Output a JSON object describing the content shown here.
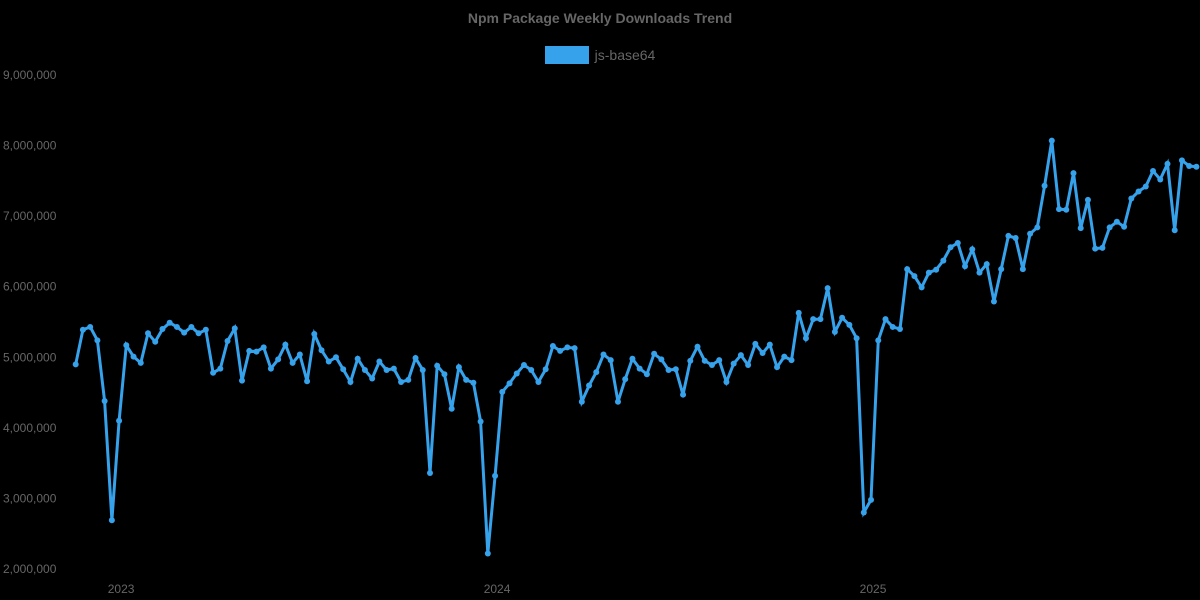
{
  "chart_data": {
    "type": "line",
    "title": "Npm Package Weekly Downloads Trend",
    "xlabel": "",
    "ylabel": "",
    "ylim": [
      2000000,
      9000000
    ],
    "yticks": [
      9000000,
      8000000,
      7000000,
      6000000,
      5000000,
      4000000,
      3000000,
      2000000
    ],
    "ytick_labels": [
      "9,000,000",
      "8,000,000",
      "7,000,000",
      "6,000,000",
      "5,000,000",
      "4,000,000",
      "3,000,000",
      "2,000,000"
    ],
    "xtick_labels": [
      {
        "label": "2023",
        "index": 6
      },
      {
        "label": "2024",
        "index": 58
      },
      {
        "label": "2025",
        "index": 110
      }
    ],
    "grid": false,
    "legend_position": "top",
    "x_description": "weekly points from late 2022 to late 2025",
    "series": [
      {
        "name": "js-base64",
        "color": "#36A2EB",
        "values": [
          4900000,
          5390000,
          5430000,
          5240000,
          4380000,
          2690000,
          4100000,
          5170000,
          5010000,
          4920000,
          5340000,
          5220000,
          5400000,
          5490000,
          5430000,
          5350000,
          5430000,
          5340000,
          5390000,
          4780000,
          4840000,
          5230000,
          5410000,
          4670000,
          5090000,
          5080000,
          5140000,
          4840000,
          4970000,
          5180000,
          4920000,
          5040000,
          4660000,
          5330000,
          5100000,
          4940000,
          5000000,
          4830000,
          4650000,
          4980000,
          4820000,
          4700000,
          4940000,
          4820000,
          4840000,
          4650000,
          4680000,
          4990000,
          4820000,
          3360000,
          4880000,
          4760000,
          4270000,
          4860000,
          4680000,
          4640000,
          4090000,
          2220000,
          3320000,
          4510000,
          4630000,
          4770000,
          4890000,
          4820000,
          4650000,
          4830000,
          5160000,
          5090000,
          5140000,
          5130000,
          4370000,
          4600000,
          4790000,
          5040000,
          4960000,
          4370000,
          4690000,
          4980000,
          4840000,
          4760000,
          5050000,
          4970000,
          4820000,
          4830000,
          4470000,
          4950000,
          5150000,
          4950000,
          4890000,
          4960000,
          4650000,
          4910000,
          5030000,
          4890000,
          5190000,
          5060000,
          5180000,
          4860000,
          5010000,
          4960000,
          5630000,
          5270000,
          5540000,
          5540000,
          5980000,
          5360000,
          5560000,
          5460000,
          5270000,
          2800000,
          2980000,
          5240000,
          5540000,
          5430000,
          5400000,
          6250000,
          6150000,
          5990000,
          6200000,
          6240000,
          6370000,
          6560000,
          6620000,
          6290000,
          6530000,
          6200000,
          6320000,
          5790000,
          6250000,
          6720000,
          6690000,
          6250000,
          6750000,
          6840000,
          7430000,
          8070000,
          7100000,
          7090000,
          7610000,
          6830000,
          7230000,
          6540000,
          6550000,
          6840000,
          6920000,
          6850000,
          7250000,
          7350000,
          7420000,
          7640000,
          7520000,
          7740000,
          6800000,
          7790000,
          7710000,
          7700000
        ]
      }
    ]
  },
  "legend": {
    "items": [
      {
        "label": "js-base64",
        "color": "#36A2EB"
      }
    ]
  }
}
